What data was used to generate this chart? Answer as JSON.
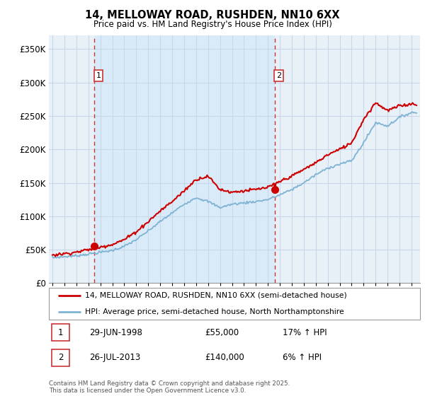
{
  "title": "14, MELLOWAY ROAD, RUSHDEN, NN10 6XX",
  "subtitle": "Price paid vs. HM Land Registry's House Price Index (HPI)",
  "ylim": [
    0,
    370000
  ],
  "yticks": [
    0,
    50000,
    100000,
    150000,
    200000,
    250000,
    300000,
    350000
  ],
  "ytick_labels": [
    "£0",
    "£50K",
    "£100K",
    "£150K",
    "£200K",
    "£250K",
    "£300K",
    "£350K"
  ],
  "sale1_date": "29-JUN-1998",
  "sale1_price": 55000,
  "sale1_label": "17% ↑ HPI",
  "sale1_x": 1998.49,
  "sale2_date": "26-JUL-2013",
  "sale2_price": 140000,
  "sale2_label": "6% ↑ HPI",
  "sale2_x": 2013.56,
  "property_color": "#cc0000",
  "hpi_color": "#7fb3d3",
  "dashed_color": "#cc3333",
  "bg_color": "#ddeeff",
  "plot_bg": "#e8f0f8",
  "legend_label_property": "14, MELLOWAY ROAD, RUSHDEN, NN10 6XX (semi-detached house)",
  "legend_label_hpi": "HPI: Average price, semi-detached house, North Northamptonshire",
  "footnote": "Contains HM Land Registry data © Crown copyright and database right 2025.\nThis data is licensed under the Open Government Licence v3.0.",
  "grid_color": "#c8d8e8",
  "xmin": 1994.7,
  "xmax": 2025.7
}
